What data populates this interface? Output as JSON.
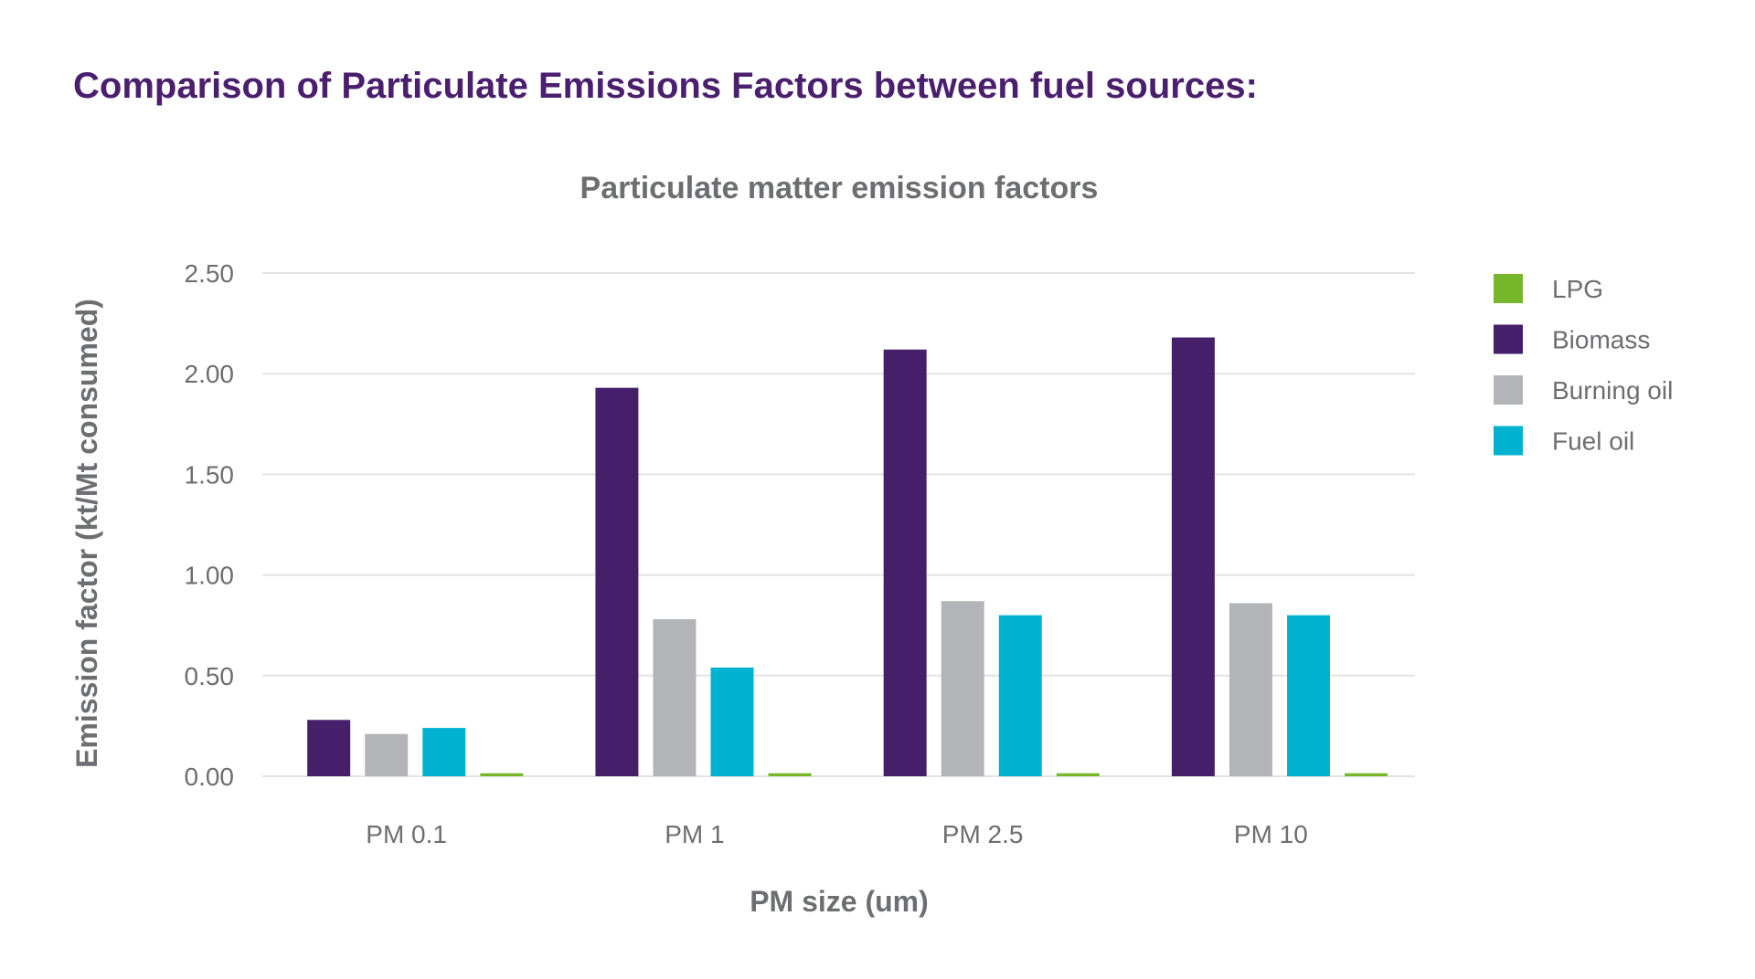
{
  "page": {
    "title": "Comparison of Particulate Emissions Factors between fuel sources:"
  },
  "chart_data": {
    "type": "bar",
    "title": "Particulate matter emission factors",
    "xlabel": "PM size (um)",
    "ylabel": "Emission factor (kt/Mt consumed)",
    "categories": [
      "PM 0.1",
      "PM 1",
      "PM 2.5",
      "PM 10"
    ],
    "ylim": [
      0,
      2.5
    ],
    "yticks": [
      "0.00",
      "0.50",
      "1.00",
      "1.50",
      "2.00",
      "2.50"
    ],
    "grid": true,
    "legend_position": "right",
    "series": [
      {
        "name": "Biomass",
        "color": "#461f6b",
        "values": [
          0.28,
          1.93,
          2.12,
          2.18
        ]
      },
      {
        "name": "Burning oil",
        "color": "#b3b4b7",
        "values": [
          0.21,
          0.78,
          0.87,
          0.86
        ]
      },
      {
        "name": "Fuel oil",
        "color": "#00b2d0",
        "values": [
          0.24,
          0.54,
          0.8,
          0.8
        ]
      },
      {
        "name": "LPG",
        "color": "#76b82a",
        "values": [
          0.015,
          0.015,
          0.015,
          0.015
        ]
      }
    ],
    "legend_order": [
      "LPG",
      "Biomass",
      "Burning oil",
      "Fuel oil"
    ]
  }
}
